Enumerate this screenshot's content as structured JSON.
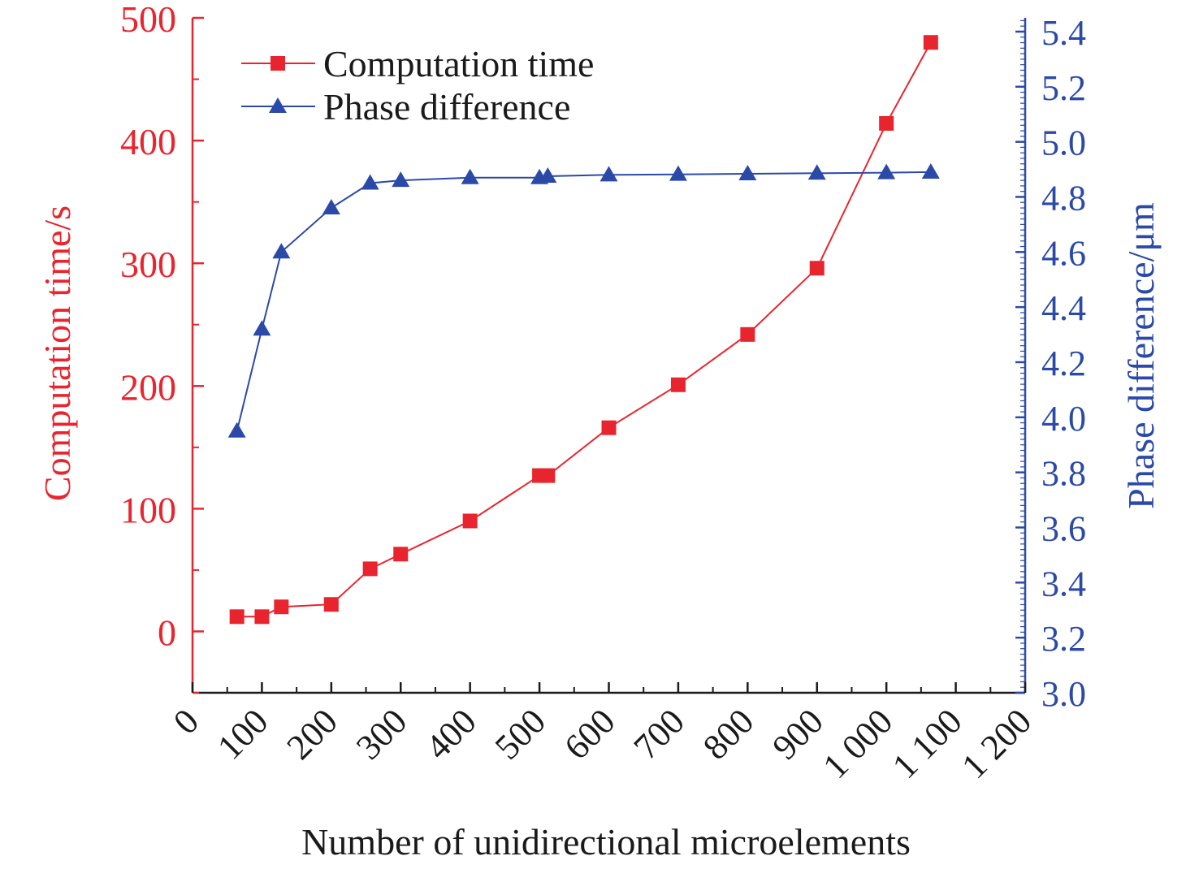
{
  "chart_data": {
    "type": "line",
    "xlabel": "Number of unidirectional microelements",
    "ylabel_left": "Computation time/s",
    "ylabel_right": "Phase difference/μm",
    "xlim": [
      0,
      1200
    ],
    "ylim_left": [
      -50,
      500
    ],
    "ylim_right": [
      3.0,
      5.45
    ],
    "x_ticks": [
      0,
      100,
      200,
      300,
      400,
      500,
      600,
      700,
      800,
      900,
      1000,
      1100,
      1200
    ],
    "x_tick_labels": [
      "0",
      "100",
      "200",
      "300",
      "400",
      "500",
      "600",
      "700",
      "800",
      "900",
      "1 000",
      "1 100",
      "1 200"
    ],
    "y_left_ticks": [
      0,
      100,
      200,
      300,
      400,
      500
    ],
    "y_left_tick_labels": [
      "0",
      "100",
      "200",
      "300",
      "400",
      "500"
    ],
    "y_right_ticks": [
      3.0,
      3.2,
      3.4,
      3.6,
      3.8,
      4.0,
      4.2,
      4.4,
      4.6,
      4.8,
      5.0,
      5.2,
      5.4
    ],
    "y_right_tick_labels": [
      "3.0",
      "3.2",
      "3.4",
      "3.6",
      "3.8",
      "4.0",
      "4.2",
      "4.4",
      "4.6",
      "4.8",
      "5.0",
      "5.2",
      "5.4"
    ],
    "legend_position": "top-left",
    "grid": false,
    "series": [
      {
        "name": "Computation time",
        "axis": "left",
        "marker": "square",
        "color": "#e8252e",
        "x": [
          64,
          100,
          128,
          200,
          256,
          300,
          400,
          500,
          512,
          600,
          700,
          800,
          900,
          1000,
          1064
        ],
        "y": [
          12,
          12,
          20,
          22,
          51,
          63,
          90,
          127,
          127,
          166,
          201,
          242,
          296,
          414,
          480
        ]
      },
      {
        "name": "Phase difference",
        "axis": "right",
        "marker": "triangle",
        "color": "#2b4aa8",
        "x": [
          64,
          100,
          128,
          200,
          256,
          300,
          400,
          500,
          512,
          600,
          700,
          800,
          900,
          1000,
          1064
        ],
        "y": [
          3.95,
          4.32,
          4.6,
          4.76,
          4.85,
          4.86,
          4.87,
          4.87,
          4.875,
          4.88,
          4.882,
          4.884,
          4.886,
          4.888,
          4.89
        ]
      }
    ]
  }
}
